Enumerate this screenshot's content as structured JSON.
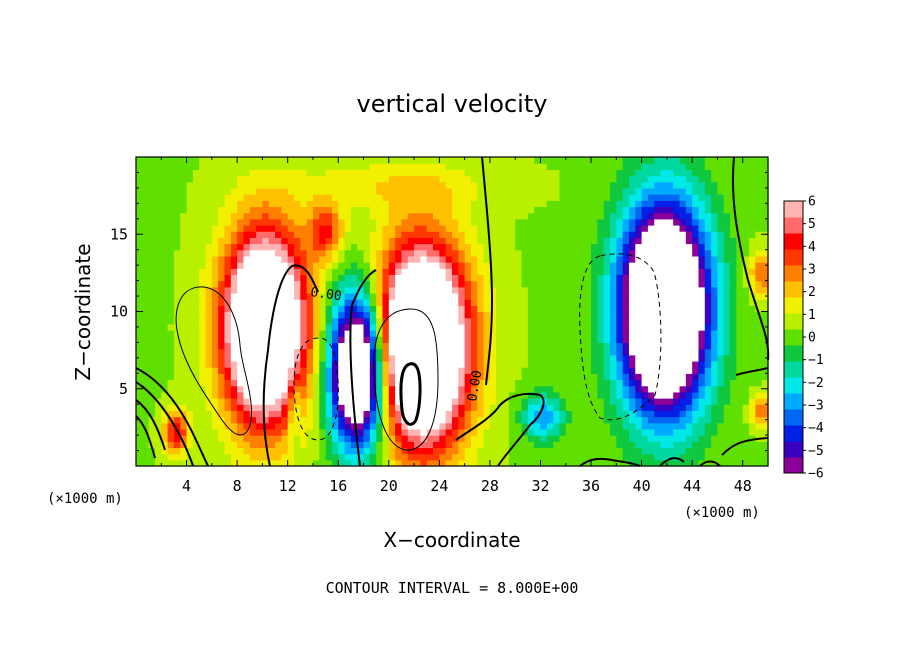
{
  "chart_data": {
    "type": "heatmap",
    "title": "vertical velocity",
    "xlabel": "X−coordinate",
    "ylabel": "Z−coordinate",
    "x_unit": "(×1000 m)",
    "y_unit": "(×1000 m)",
    "xlim": [
      0,
      50
    ],
    "ylim": [
      0,
      20
    ],
    "xticks": [
      {
        "value": 4,
        "label": "4"
      },
      {
        "value": 8,
        "label": "8"
      },
      {
        "value": 12,
        "label": "12"
      },
      {
        "value": 16,
        "label": "16"
      },
      {
        "value": 20,
        "label": "20"
      },
      {
        "value": 24,
        "label": "24"
      },
      {
        "value": 28,
        "label": "28"
      },
      {
        "value": 32,
        "label": "32"
      },
      {
        "value": 36,
        "label": "36"
      },
      {
        "value": 40,
        "label": "40"
      },
      {
        "value": 44,
        "label": "44"
      },
      {
        "value": 48,
        "label": "48"
      }
    ],
    "yticks": [
      {
        "value": 5,
        "label": "5"
      },
      {
        "value": 10,
        "label": "10"
      },
      {
        "value": 15,
        "label": "15"
      }
    ],
    "colorbar": {
      "ticks": [
        {
          "value": 6,
          "label": "6"
        },
        {
          "value": 5,
          "label": "5"
        },
        {
          "value": 4,
          "label": "4"
        },
        {
          "value": 3,
          "label": "3"
        },
        {
          "value": 2,
          "label": "2"
        },
        {
          "value": 1,
          "label": "1"
        },
        {
          "value": 0,
          "label": "0"
        },
        {
          "value": -1,
          "label": "−1"
        },
        {
          "value": -2,
          "label": "−2"
        },
        {
          "value": -3,
          "label": "−3"
        },
        {
          "value": -4,
          "label": "−4"
        },
        {
          "value": -5,
          "label": "−5"
        },
        {
          "value": -6,
          "label": "−6"
        }
      ],
      "colors": [
        "#8a0099",
        "#3a00c0",
        "#0020e8",
        "#0068f2",
        "#00aaff",
        "#00e8e8",
        "#00d8a0",
        "#10c840",
        "#60e000",
        "#b8f000",
        "#f0f000",
        "#ffc000",
        "#ff8000",
        "#ff3800",
        "#ff0000",
        "#ff6a6a",
        "#ffb4b4"
      ]
    },
    "field": {
      "background": 0.3,
      "features": [
        {
          "cx": 10.2,
          "cz": 9.0,
          "sx": 3.2,
          "sz": 6.0,
          "amp": 12.0
        },
        {
          "cx": 22.6,
          "cz": 7.8,
          "sx": 3.6,
          "sz": 6.2,
          "amp": 13.0
        },
        {
          "cx": 15.0,
          "cz": 15.2,
          "sx": 1.4,
          "sz": 1.8,
          "amp": 3.5
        },
        {
          "cx": 17.6,
          "cz": 6.2,
          "sx": 2.2,
          "sz": 4.8,
          "amp": -12.0
        },
        {
          "cx": 41.8,
          "cz": 10.2,
          "sx": 3.4,
          "sz": 6.4,
          "amp": -14.0
        },
        {
          "cx": 32.2,
          "cz": 3.2,
          "sx": 1.6,
          "sz": 1.5,
          "amp": -3.5
        },
        {
          "cx": 3.2,
          "cz": 2.2,
          "sx": 1.0,
          "sz": 1.4,
          "amp": 4.0
        },
        {
          "cx": 49.5,
          "cz": 12.5,
          "sx": 1.0,
          "sz": 1.5,
          "amp": 3.0
        },
        {
          "cx": 49.5,
          "cz": 3.6,
          "sx": 0.8,
          "sz": 1.0,
          "amp": 3.0
        },
        {
          "cx": 20.0,
          "cz": 18.2,
          "sx": 8.0,
          "sz": 1.6,
          "amp": 1.2
        },
        {
          "cx": 12.5,
          "cz": 4.0,
          "sx": 0.5,
          "sz": 2.5,
          "amp": -2.0
        }
      ]
    },
    "contours": {
      "solid_labels": [
        "0.00",
        "0.00"
      ]
    }
  },
  "footer": {
    "contour_interval": "CONTOUR INTERVAL = 8.000E+00"
  }
}
